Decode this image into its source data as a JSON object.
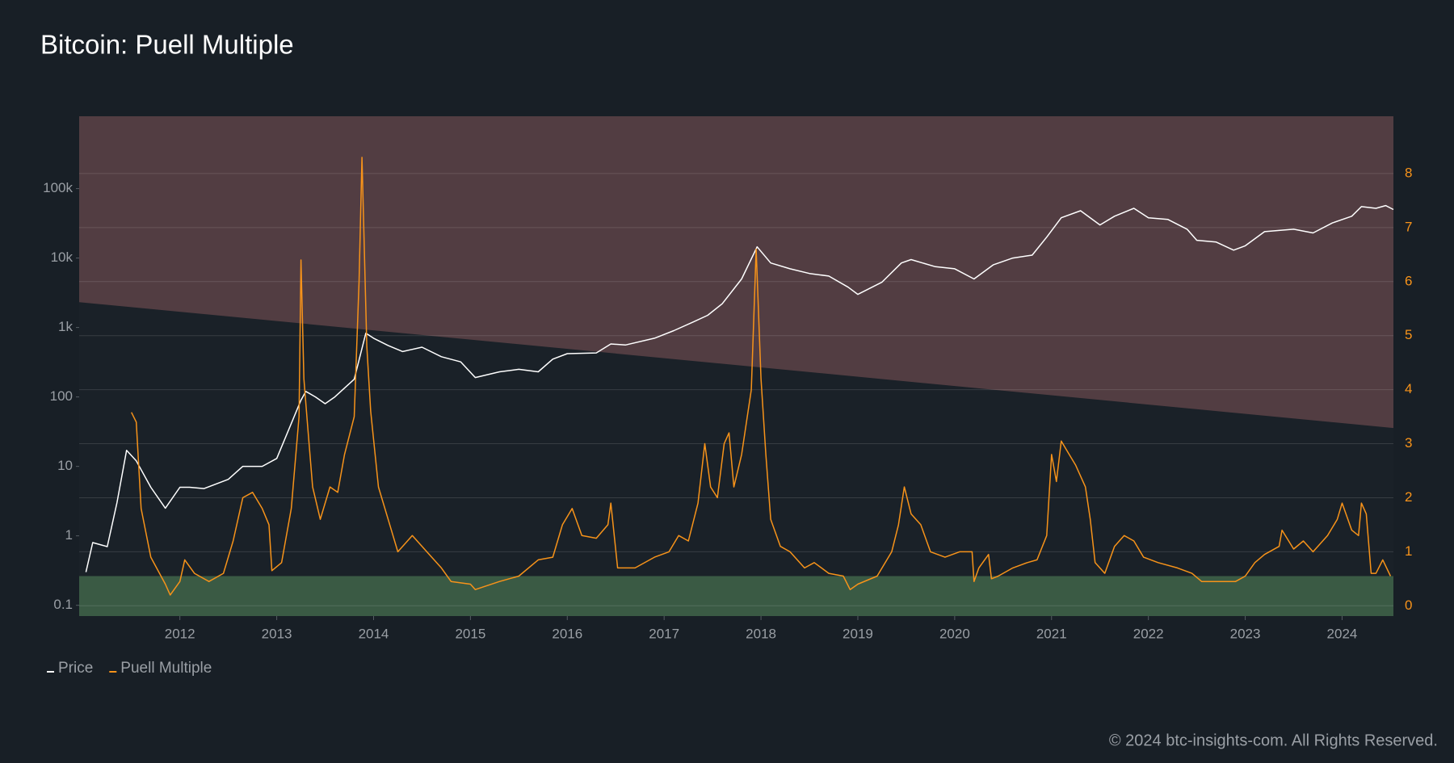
{
  "chart_data": {
    "type": "line",
    "title": "Bitcoin: Puell Multiple",
    "footer": "© 2024 btc-insights-com. All Rights Reserved.",
    "log_y": true,
    "grid": true,
    "legend": "bottom-left",
    "xlim": [
      2010.96,
      2024.53
    ],
    "xticks": [
      2012,
      2013,
      2014,
      2015,
      2016,
      2017,
      2018,
      2019,
      2020,
      2021,
      2022,
      2023,
      2024
    ],
    "ylim": [
      0.07,
      1100000
    ],
    "yticks": [
      {
        "value": 100000,
        "label": "100k"
      },
      {
        "value": 10000,
        "label": "10k"
      },
      {
        "value": 1000,
        "label": "1k"
      },
      100,
      10,
      1,
      0.1
    ],
    "y2lim": [
      -0.19,
      9.06
    ],
    "y2ticks": [
      0,
      1,
      2,
      3,
      4,
      5,
      6,
      7,
      8
    ],
    "bands": [
      {
        "color": "#523d42",
        "lower": [
          5.62,
          3.29
        ],
        "upper": [
          9.06,
          9.06
        ]
      },
      {
        "color": "#3a5a44",
        "lower": [
          -0.19,
          -0.19
        ],
        "upper": [
          0.55,
          0.55
        ]
      }
    ],
    "series": [
      {
        "name": "Price",
        "color": "#ffffff",
        "x": [
          2011.03,
          2011.1,
          2011.25,
          2011.35,
          2011.45,
          2011.55,
          2011.7,
          2011.85,
          2012.0,
          2012.1,
          2012.25,
          2012.5,
          2012.65,
          2012.85,
          2013.0,
          2013.25,
          2013.3,
          2013.4,
          2013.5,
          2013.6,
          2013.8,
          2013.92,
          2014.0,
          2014.15,
          2014.3,
          2014.5,
          2014.7,
          2014.9,
          2015.05,
          2015.3,
          2015.5,
          2015.7,
          2015.85,
          2016.0,
          2016.3,
          2016.45,
          2016.6,
          2016.9,
          2017.1,
          2017.3,
          2017.45,
          2017.6,
          2017.8,
          2017.96,
          2018.1,
          2018.3,
          2018.5,
          2018.7,
          2018.9,
          2019.0,
          2019.25,
          2019.45,
          2019.55,
          2019.8,
          2020.0,
          2020.2,
          2020.4,
          2020.6,
          2020.8,
          2020.95,
          2021.1,
          2021.3,
          2021.5,
          2021.65,
          2021.85,
          2022.0,
          2022.2,
          2022.4,
          2022.5,
          2022.7,
          2022.88,
          2023.0,
          2023.2,
          2023.5,
          2023.7,
          2023.9,
          2024.1,
          2024.2,
          2024.35,
          2024.45,
          2024.53
        ],
        "values": [
          0.3,
          0.8,
          0.7,
          3,
          17,
          12,
          5,
          2.5,
          5,
          5,
          4.8,
          6.5,
          10,
          10,
          13,
          90,
          120,
          100,
          80,
          100,
          180,
          830,
          700,
          550,
          450,
          520,
          380,
          320,
          190,
          230,
          250,
          230,
          350,
          420,
          430,
          580,
          560,
          700,
          900,
          1200,
          1500,
          2200,
          5000,
          14500,
          8500,
          7000,
          6000,
          5500,
          3800,
          3000,
          4500,
          8500,
          9500,
          7500,
          7000,
          5000,
          8000,
          10000,
          11000,
          20000,
          38000,
          48000,
          30000,
          40000,
          52000,
          38000,
          36000,
          26000,
          18000,
          17000,
          13000,
          15000,
          24000,
          26000,
          23000,
          32000,
          40000,
          55000,
          52000,
          57000,
          50000
        ]
      },
      {
        "name": "Puell Multiple",
        "color": "#f7931a",
        "axis": "y2",
        "x": [
          2011.5,
          2011.55,
          2011.6,
          2011.7,
          2011.85,
          2011.9,
          2012.0,
          2012.05,
          2012.15,
          2012.3,
          2012.45,
          2012.55,
          2012.65,
          2012.75,
          2012.85,
          2012.92,
          2012.95,
          2013.05,
          2013.15,
          2013.23,
          2013.25,
          2013.28,
          2013.32,
          2013.37,
          2013.45,
          2013.55,
          2013.63,
          2013.7,
          2013.8,
          2013.85,
          2013.88,
          2013.93,
          2013.97,
          2014.05,
          2014.15,
          2014.25,
          2014.4,
          2014.55,
          2014.7,
          2014.8,
          2015.0,
          2015.05,
          2015.3,
          2015.5,
          2015.7,
          2015.85,
          2015.95,
          2016.05,
          2016.15,
          2016.3,
          2016.42,
          2016.45,
          2016.52,
          2016.7,
          2016.9,
          2017.05,
          2017.15,
          2017.25,
          2017.35,
          2017.42,
          2017.48,
          2017.55,
          2017.62,
          2017.67,
          2017.72,
          2017.8,
          2017.9,
          2017.95,
          2018.0,
          2018.05,
          2018.1,
          2018.2,
          2018.3,
          2018.45,
          2018.55,
          2018.7,
          2018.85,
          2018.92,
          2019.0,
          2019.2,
          2019.35,
          2019.42,
          2019.48,
          2019.55,
          2019.65,
          2019.75,
          2019.9,
          2020.05,
          2020.18,
          2020.2,
          2020.25,
          2020.35,
          2020.38,
          2020.45,
          2020.6,
          2020.75,
          2020.85,
          2020.95,
          2021.0,
          2021.05,
          2021.1,
          2021.15,
          2021.25,
          2021.35,
          2021.4,
          2021.45,
          2021.55,
          2021.65,
          2021.75,
          2021.85,
          2021.95,
          2022.1,
          2022.3,
          2022.45,
          2022.55,
          2022.7,
          2022.9,
          2023.0,
          2023.1,
          2023.2,
          2023.35,
          2023.38,
          2023.5,
          2023.6,
          2023.7,
          2023.85,
          2023.95,
          2024.0,
          2024.1,
          2024.17,
          2024.2,
          2024.25,
          2024.3,
          2024.35,
          2024.42,
          2024.5
        ],
        "values": [
          3.58,
          3.4,
          1.8,
          0.9,
          0.4,
          0.2,
          0.45,
          0.85,
          0.6,
          0.45,
          0.6,
          1.2,
          2.0,
          2.1,
          1.8,
          1.5,
          0.65,
          0.8,
          1.8,
          3.5,
          6.4,
          4.2,
          3.3,
          2.2,
          1.6,
          2.2,
          2.1,
          2.8,
          3.5,
          6.0,
          8.3,
          4.8,
          3.6,
          2.2,
          1.6,
          1.0,
          1.3,
          1.0,
          0.7,
          0.45,
          0.4,
          0.3,
          0.45,
          0.55,
          0.85,
          0.9,
          1.5,
          1.8,
          1.3,
          1.25,
          1.5,
          1.9,
          0.7,
          0.7,
          0.9,
          1.0,
          1.3,
          1.2,
          1.9,
          3.0,
          2.2,
          2.0,
          3.0,
          3.2,
          2.2,
          2.8,
          4.0,
          6.6,
          4.2,
          2.8,
          1.6,
          1.1,
          1.0,
          0.7,
          0.8,
          0.6,
          0.55,
          0.3,
          0.4,
          0.55,
          1.0,
          1.5,
          2.2,
          1.7,
          1.5,
          1.0,
          0.9,
          1.0,
          1.0,
          0.45,
          0.7,
          0.95,
          0.5,
          0.55,
          0.7,
          0.8,
          0.85,
          1.3,
          2.8,
          2.3,
          3.05,
          2.9,
          2.6,
          2.2,
          1.6,
          0.8,
          0.6,
          1.1,
          1.3,
          1.2,
          0.9,
          0.8,
          0.7,
          0.6,
          0.45,
          0.45,
          0.45,
          0.55,
          0.8,
          0.95,
          1.1,
          1.4,
          1.05,
          1.2,
          1.0,
          1.3,
          1.6,
          1.9,
          1.4,
          1.3,
          1.9,
          1.7,
          0.6,
          0.6,
          0.85,
          0.55
        ]
      }
    ]
  }
}
